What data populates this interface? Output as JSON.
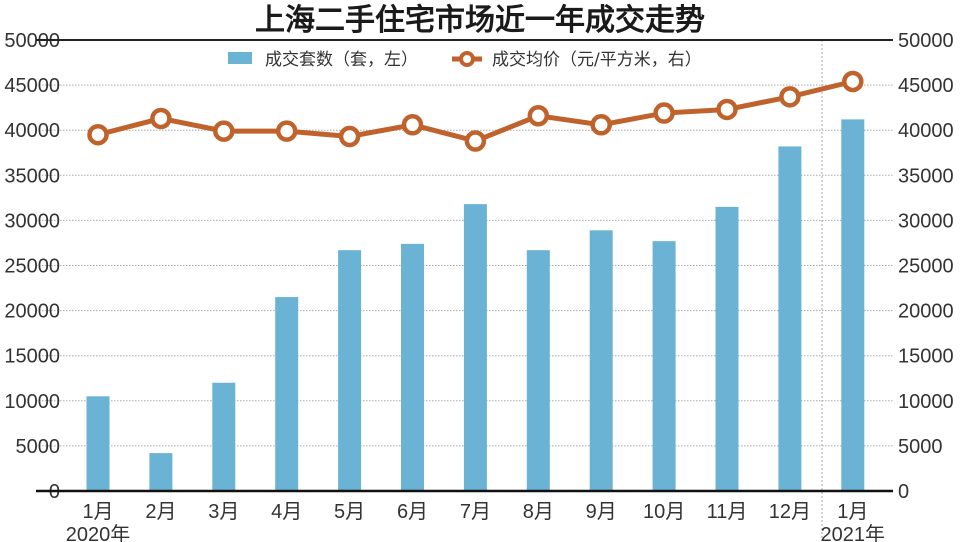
{
  "chart_data": {
    "type": "bar+line",
    "title": "上海二手住宅市场近一年成交走势",
    "categories": [
      "1月",
      "2月",
      "3月",
      "4月",
      "5月",
      "6月",
      "7月",
      "8月",
      "9月",
      "10月",
      "11月",
      "12月",
      "1月"
    ],
    "year_labels": [
      {
        "index": 0,
        "label": "2020年"
      },
      {
        "index": 12,
        "label": "2021年"
      }
    ],
    "y_left": {
      "range": [
        0,
        50000
      ],
      "ticks": [
        0,
        5000,
        10000,
        15000,
        20000,
        25000,
        30000,
        35000,
        40000,
        45000,
        50000
      ]
    },
    "y_right": {
      "range": [
        0,
        50000
      ],
      "ticks": [
        0,
        5000,
        10000,
        15000,
        20000,
        25000,
        30000,
        35000,
        40000,
        45000,
        50000
      ]
    },
    "grid": true,
    "legend_position": "top",
    "series": [
      {
        "name": "成交套数（套，左）",
        "type": "bar",
        "axis": "left",
        "color": "#6ab3d4",
        "values": [
          10500,
          4200,
          12000,
          21500,
          26700,
          27400,
          31800,
          26700,
          28900,
          27700,
          31500,
          38200,
          41200
        ]
      },
      {
        "name": "成交均价（元/平方米，右）",
        "type": "line",
        "axis": "right",
        "color": "#c0622c",
        "values": [
          39500,
          41300,
          39900,
          39900,
          39300,
          40600,
          38800,
          41600,
          40600,
          41900,
          42300,
          43700,
          45400
        ]
      }
    ]
  }
}
